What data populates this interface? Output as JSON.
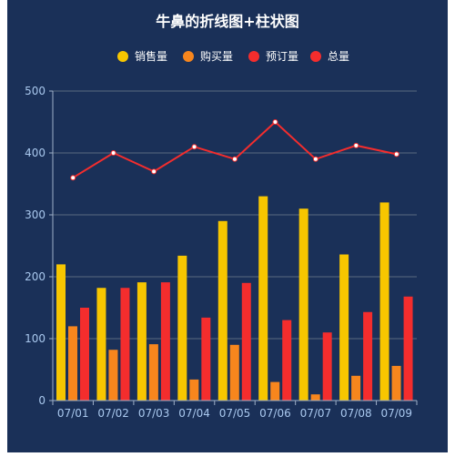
{
  "chart_data": {
    "type": "bar+line",
    "title": "牛鼻的折线图+柱状图",
    "categories": [
      "07/01",
      "07/02",
      "07/03",
      "07/04",
      "07/05",
      "07/06",
      "07/07",
      "07/08",
      "07/09"
    ],
    "ylim": [
      0,
      500
    ],
    "yticks": [
      "0",
      "100",
      "200",
      "300",
      "400",
      "500"
    ],
    "grid": true,
    "legend_position": "top-center",
    "series": [
      {
        "name": "销售量",
        "type": "bar",
        "color": "#f7c600",
        "values": [
          220,
          182,
          191,
          234,
          290,
          330,
          310,
          236,
          320
        ]
      },
      {
        "name": "购买量",
        "type": "bar",
        "color": "#f7861d",
        "values": [
          120,
          82,
          91,
          34,
          90,
          30,
          10,
          40,
          56
        ]
      },
      {
        "name": "预订量",
        "type": "bar",
        "color": "#f42d2d",
        "values": [
          150,
          182,
          191,
          134,
          190,
          130,
          110,
          143,
          168
        ]
      },
      {
        "name": "总量",
        "type": "line",
        "color": "#f42d2d",
        "values": [
          360,
          400,
          370,
          410,
          390,
          450,
          390,
          412,
          398
        ]
      }
    ],
    "colors": {
      "background": "#1a3058",
      "axis": "#9fb0c8",
      "grid": "#5a6a80",
      "tick_text": "#a9c8ee",
      "title_text": "#ffffff",
      "legend_text": "#ffffff",
      "line_point": "#ffffff"
    }
  }
}
